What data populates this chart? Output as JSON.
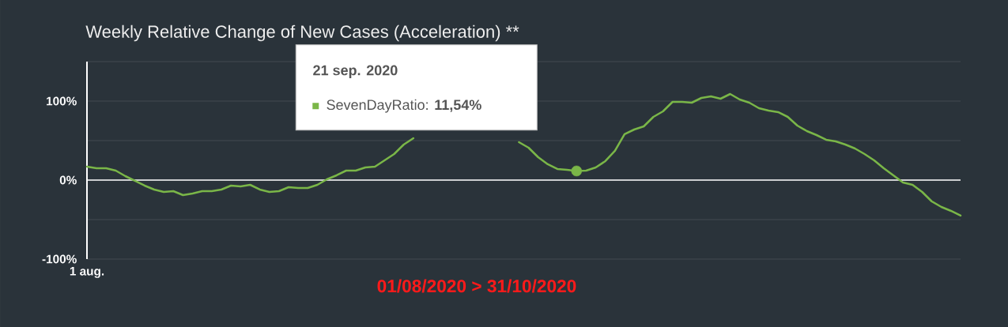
{
  "chart_data": {
    "type": "line",
    "title": "Weekly Relative Change of New Cases (Acceleration) **",
    "categories": [
      "1 aug.",
      null,
      null,
      null,
      null,
      null,
      null,
      null,
      null,
      null,
      null,
      null,
      null,
      null,
      null,
      null,
      null,
      null,
      null,
      null,
      null,
      null,
      null,
      null,
      null,
      null,
      null,
      null,
      null,
      null,
      null,
      null,
      null,
      null,
      null,
      null,
      null,
      null,
      null,
      null,
      null,
      null,
      null,
      null,
      null,
      null,
      null,
      null,
      null,
      null,
      null,
      null,
      null,
      null,
      null,
      null,
      null,
      null,
      null,
      null,
      null,
      null,
      null,
      null,
      null,
      null,
      null,
      null,
      null,
      null,
      null,
      null,
      null,
      null,
      null,
      null,
      null,
      null,
      null,
      null,
      null,
      null,
      null,
      null,
      null,
      null,
      null,
      null,
      null,
      null,
      null,
      null
    ],
    "series": [
      {
        "color": "#7ab648",
        "values": [
          17,
          15,
          15,
          12,
          5,
          -1,
          -7,
          -12,
          -15,
          -14,
          -19,
          -17,
          -14,
          -14,
          -12,
          -7,
          -8,
          -6,
          -12,
          -15,
          -14,
          -9,
          -10,
          -10,
          -6,
          1,
          6,
          12,
          12,
          16,
          17,
          25,
          33,
          45,
          53,
          null,
          null,
          null,
          null,
          null,
          null,
          null,
          null,
          null,
          null,
          null,
          null,
          null,
          null,
          null,
          null,
          null,
          null,
          null,
          null,
          null,
          null,
          null,
          null,
          null,
          null,
          null,
          null,
          null,
          null,
          null,
          null,
          null,
          null,
          null,
          null,
          null,
          null,
          null,
          null,
          null,
          null,
          null,
          null,
          null,
          null,
          null,
          null,
          null,
          null,
          null,
          null,
          null,
          null,
          null,
          null,
          null
        ]
      },
      {
        "color": "#7ab648",
        "values": [
          null,
          null,
          null,
          null,
          null,
          null,
          null,
          null,
          null,
          null,
          null,
          null,
          null,
          null,
          null,
          null,
          null,
          null,
          null,
          null,
          null,
          null,
          null,
          null,
          null,
          null,
          null,
          null,
          null,
          null,
          null,
          null,
          null,
          null,
          null,
          null,
          null,
          null,
          null,
          null,
          null,
          null,
          null,
          null,
          null,
          48,
          41,
          29,
          20,
          14,
          13,
          11.54,
          12,
          16,
          24,
          37,
          58,
          64,
          68,
          80,
          87,
          99,
          99,
          98,
          104,
          106,
          103,
          109,
          102,
          98,
          91,
          88,
          86,
          80,
          69,
          62,
          57,
          51,
          49,
          45,
          40,
          33,
          25,
          15,
          6,
          -3,
          -6,
          -15,
          -27,
          -34,
          -39,
          -45
        ]
      },
      {
        "type": "scatter",
        "marker": "circle",
        "color": "#7ab648",
        "values": [
          null,
          null,
          null,
          null,
          null,
          null,
          null,
          null,
          null,
          null,
          null,
          null,
          null,
          null,
          null,
          null,
          null,
          null,
          null,
          null,
          null,
          null,
          null,
          null,
          null,
          null,
          null,
          null,
          null,
          null,
          null,
          null,
          null,
          null,
          null,
          null,
          null,
          null,
          null,
          null,
          null,
          null,
          null,
          null,
          null,
          null,
          null,
          null,
          null,
          null,
          null,
          11.54,
          null,
          null,
          null,
          null,
          null,
          null,
          null,
          null,
          null,
          null,
          null,
          null,
          null,
          null,
          null,
          null,
          null,
          null,
          null,
          null,
          null,
          null,
          null,
          null,
          null,
          null,
          null,
          null,
          null,
          null,
          null,
          null,
          null,
          null,
          null,
          null,
          null,
          null,
          null,
          null
        ]
      }
    ],
    "ylim": [
      -100,
      150
    ],
    "yticks": [
      {
        "value": -100,
        "label": "-100%"
      },
      {
        "value": -50,
        "label": null
      },
      {
        "value": 0,
        "label": "0%"
      },
      {
        "value": 50,
        "label": null
      },
      {
        "value": 100,
        "label": "100%"
      },
      {
        "value": 150,
        "label": null
      }
    ],
    "grid": "y",
    "marker": "none",
    "line_style": "solid",
    "ref_lines": [
      {
        "axis": "y",
        "value": 0,
        "color": "#ffffff"
      }
    ],
    "annotations": [
      "21 sep. 2020",
      "SevenDayRatio: **11,54%**",
      "01/08/2020 > 31/10/2020"
    ]
  }
}
